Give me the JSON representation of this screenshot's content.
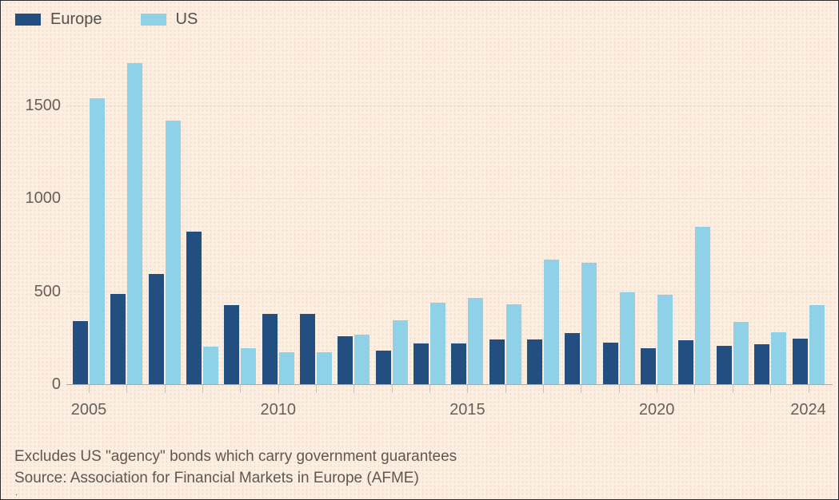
{
  "colors": {
    "background": "#FCEFE1",
    "europe": "#234F80",
    "us": "#8FD2E8",
    "axis_text": "#66605C",
    "legend_text": "#54504B",
    "gridline": "#EFE1D1",
    "baseline": "#B3A89D",
    "footer_text": "#5E5852"
  },
  "chart_data": {
    "type": "bar",
    "title": "",
    "categories": [
      "2005",
      "2006",
      "2007",
      "2008",
      "2009",
      "2010",
      "2011",
      "2012",
      "2013",
      "2014",
      "2015",
      "2016",
      "2017",
      "2018",
      "2019",
      "2020",
      "2021",
      "2022",
      "2023",
      "2024"
    ],
    "series": [
      {
        "name": "Europe",
        "color": "#234F80",
        "values": [
          340,
          485,
          595,
          820,
          425,
          380,
          380,
          260,
          180,
          220,
          220,
          240,
          240,
          275,
          225,
          195,
          235,
          205,
          215,
          245
        ]
      },
      {
        "name": "US",
        "color": "#8FD2E8",
        "values": [
          1540,
          1730,
          1420,
          200,
          195,
          170,
          170,
          265,
          345,
          440,
          465,
          430,
          670,
          655,
          495,
          480,
          845,
          335,
          280,
          425
        ]
      }
    ],
    "ylim": [
      0,
      1800
    ],
    "yticks": [
      0,
      500,
      1000,
      1500
    ],
    "x_axis_labels": [
      "2005",
      "2010",
      "2015",
      "2020",
      "2024"
    ],
    "grid": true,
    "legend_position": "top-left"
  },
  "footer": {
    "note": "Excludes US \"agency\" bonds which carry government guarantees",
    "source": "Source: Association for Financial Markets in Europe (AFME)",
    "dot": "."
  }
}
